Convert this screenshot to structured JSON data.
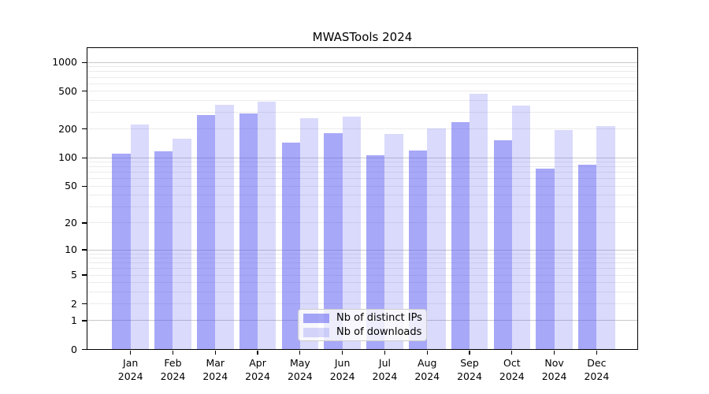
{
  "chart_data": {
    "type": "bar",
    "title": "MWASTools 2024",
    "categories": [
      "Jan 2024",
      "Feb 2024",
      "Mar 2024",
      "Apr 2024",
      "May 2024",
      "Jun 2024",
      "Jul 2024",
      "Aug 2024",
      "Sep 2024",
      "Oct 2024",
      "Nov 2024",
      "Dec 2024"
    ],
    "series": [
      {
        "name": "Nb of distinct IPs",
        "color": "rgba(88,88,242,0.52)",
        "values": [
          110,
          117,
          280,
          290,
          144,
          181,
          107,
          120,
          237,
          152,
          76,
          85
        ]
      },
      {
        "name": "Nb of downloads",
        "color": "rgba(88,88,242,0.22)",
        "values": [
          225,
          158,
          360,
          385,
          260,
          270,
          178,
          204,
          474,
          350,
          197,
          217
        ]
      }
    ],
    "xlabel": "",
    "ylabel": "",
    "yscale": "log10(value+1)",
    "ylim": [
      0,
      1430
    ],
    "yticks": [
      0,
      1,
      2,
      5,
      10,
      20,
      50,
      100,
      200,
      500,
      1000
    ],
    "major_gridlines": [
      1,
      10,
      100,
      1000
    ],
    "minor_gridlines": [
      2,
      3,
      4,
      5,
      6,
      7,
      8,
      9,
      20,
      30,
      40,
      50,
      60,
      70,
      80,
      90,
      200,
      300,
      400,
      500,
      600,
      700,
      800,
      900
    ],
    "grid": true,
    "legend_position": "inside-bottom-center",
    "colors": {
      "axis": "#000000",
      "major_grid": "#c9c9c9",
      "minor_grid": "#ebebeb",
      "legend_border": "#cccccc",
      "background": "#ffffff"
    }
  }
}
